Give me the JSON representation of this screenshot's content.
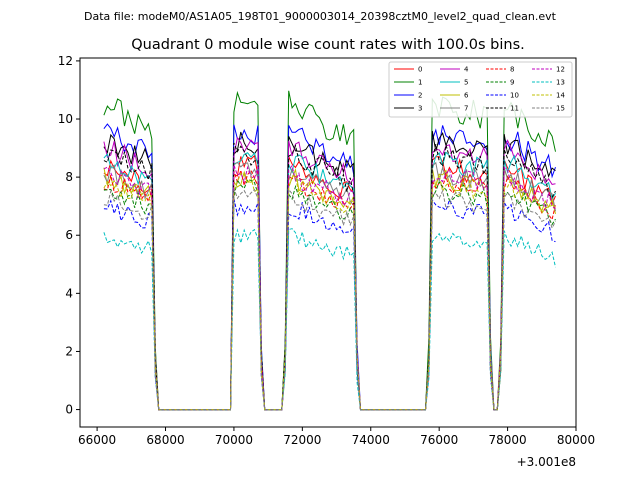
{
  "header": {
    "file_note": "Data file: modeM0/AS1A05_198T01_9000003014_20398cztM0_level2_quad_clean.evt"
  },
  "chart_data": {
    "type": "line",
    "title": "Quadrant 0 module wise count rates with 100.0s bins.",
    "xlabel": "",
    "ylabel": "",
    "x_offset_label": "+3.001e8",
    "xlim": [
      65500,
      80000
    ],
    "ylim": [
      -0.6,
      12.1
    ],
    "x_ticks": [
      66000,
      68000,
      70000,
      72000,
      74000,
      76000,
      78000,
      80000
    ],
    "x_tick_labels": [
      "66000",
      "68000",
      "70000",
      "72000",
      "74000",
      "76000",
      "78000",
      "80000"
    ],
    "y_ticks": [
      0,
      2,
      4,
      6,
      8,
      10,
      12
    ],
    "y_tick_labels": [
      "0",
      "2",
      "4",
      "6",
      "8",
      "10",
      "12"
    ],
    "grid": false,
    "legend_position": "top-right",
    "legend_columns": 4,
    "bin_s": 100,
    "segments": [
      [
        66200,
        67600
      ],
      [
        70000,
        70700
      ],
      [
        71600,
        73500
      ],
      [
        75800,
        77400
      ],
      [
        77900,
        79400
      ]
    ],
    "gaps": [
      [
        67800,
        69800
      ],
      [
        70800,
        71500
      ],
      [
        73700,
        75700
      ],
      [
        77500,
        77800
      ]
    ],
    "series": [
      {
        "name": "0",
        "color": "#ff0000",
        "dash": "solid",
        "level": 8.4
      },
      {
        "name": "1",
        "color": "#008000",
        "dash": "solid",
        "level": 10.5
      },
      {
        "name": "2",
        "color": "#0000ff",
        "dash": "solid",
        "level": 9.5
      },
      {
        "name": "3",
        "color": "#000000",
        "dash": "solid",
        "level": 9.2
      },
      {
        "name": "4",
        "color": "#bf00bf",
        "dash": "solid",
        "level": 9.0
      },
      {
        "name": "5",
        "color": "#00bfbf",
        "dash": "solid",
        "level": 8.6
      },
      {
        "name": "6",
        "color": "#bfbf00",
        "dash": "solid",
        "level": 8.0
      },
      {
        "name": "7",
        "color": "#808080",
        "dash": "solid",
        "level": 8.2
      },
      {
        "name": "8",
        "color": "#ff0000",
        "dash": "dashed",
        "level": 7.9
      },
      {
        "name": "9",
        "color": "#008000",
        "dash": "dashed",
        "level": 7.6
      },
      {
        "name": "10",
        "color": "#0000ff",
        "dash": "dashed",
        "level": 7.0
      },
      {
        "name": "11",
        "color": "#000000",
        "dash": "dashed",
        "level": 8.8
      },
      {
        "name": "12",
        "color": "#bf00bf",
        "dash": "dashed",
        "level": 8.1
      },
      {
        "name": "13",
        "color": "#00bfbf",
        "dash": "dashed",
        "level": 6.0
      },
      {
        "name": "14",
        "color": "#bfbf00",
        "dash": "dashed",
        "level": 7.8
      },
      {
        "name": "15",
        "color": "#808080",
        "dash": "dashed",
        "level": 7.3
      }
    ]
  }
}
